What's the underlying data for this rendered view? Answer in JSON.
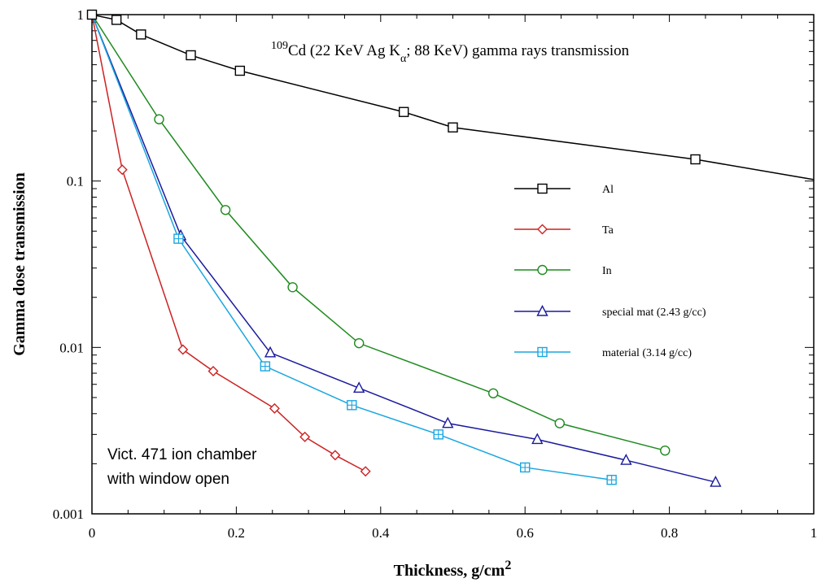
{
  "chart_data": {
    "type": "line",
    "xlabel": {
      "main": "Thickness, g/cm",
      "sup": "2"
    },
    "ylabel": "Gamma dose transmission",
    "xlim": [
      0,
      1
    ],
    "ylim": [
      0.001,
      1
    ],
    "yscale": "log",
    "grid": false,
    "x_ticks": [
      {
        "v": 0,
        "label": "0"
      },
      {
        "v": 0.2,
        "label": "0.2"
      },
      {
        "v": 0.4,
        "label": "0.4"
      },
      {
        "v": 0.6,
        "label": "0.6"
      },
      {
        "v": 0.8,
        "label": "0.8"
      },
      {
        "v": 1,
        "label": "1"
      }
    ],
    "y_ticks": [
      {
        "v": 1,
        "label": "1"
      },
      {
        "v": 0.1,
        "label": "0.1"
      },
      {
        "v": 0.01,
        "label": "0.01"
      },
      {
        "v": 0.001,
        "label": "0.001"
      }
    ],
    "annotation": {
      "sup": "109",
      "pre": "Cd (22 KeV Ag K",
      "sub": "α",
      "post": "; 88 KeV) gamma rays transmission"
    },
    "note_lines": [
      "Vict. 471 ion chamber",
      "with window open"
    ],
    "legend_position": "right",
    "series": [
      {
        "name": "Al",
        "color": "#000000",
        "marker": "square",
        "x": [
          0,
          0.034,
          0.068,
          0.137,
          0.205,
          0.432,
          0.5,
          0.836,
          1.0
        ],
        "y": [
          1.0,
          0.93,
          0.76,
          0.57,
          0.46,
          0.26,
          0.21,
          0.135,
          0.102
        ],
        "marker_mask": [
          1,
          1,
          1,
          1,
          1,
          1,
          1,
          1,
          0
        ]
      },
      {
        "name": "Ta",
        "color": "#cc2222",
        "marker": "diamond",
        "x": [
          0,
          0.042,
          0.126,
          0.168,
          0.253,
          0.295,
          0.337,
          0.379
        ],
        "y": [
          1.0,
          0.117,
          0.0097,
          0.0072,
          0.0043,
          0.0029,
          0.00225,
          0.0018
        ],
        "marker_mask": [
          0,
          1,
          1,
          1,
          1,
          1,
          1,
          1
        ]
      },
      {
        "name": "In",
        "color": "#1e8a1e",
        "marker": "circle",
        "x": [
          0,
          0.093,
          0.185,
          0.278,
          0.37,
          0.556,
          0.648,
          0.794
        ],
        "y": [
          1.0,
          0.235,
          0.067,
          0.023,
          0.0106,
          0.0053,
          0.0035,
          0.0024
        ],
        "marker_mask": [
          0,
          1,
          1,
          1,
          1,
          1,
          1,
          1
        ]
      },
      {
        "name": "special mat (2.43 g/cc)",
        "color": "#1a1a9e",
        "marker": "triangle",
        "x": [
          0,
          0.123,
          0.247,
          0.37,
          0.493,
          0.617,
          0.74,
          0.864
        ],
        "y": [
          1.0,
          0.047,
          0.0093,
          0.0057,
          0.0035,
          0.0028,
          0.0021,
          0.00155
        ],
        "marker_mask": [
          0,
          1,
          1,
          1,
          1,
          1,
          1,
          1
        ]
      },
      {
        "name": "material (3.14 g/cc)",
        "color": "#1aa6e0",
        "marker": "square-plus",
        "x": [
          0,
          0.12,
          0.24,
          0.36,
          0.48,
          0.6,
          0.72
        ],
        "y": [
          1.0,
          0.045,
          0.0077,
          0.0045,
          0.003,
          0.0019,
          0.0016
        ],
        "marker_mask": [
          0,
          1,
          1,
          1,
          1,
          1,
          1
        ]
      }
    ]
  }
}
